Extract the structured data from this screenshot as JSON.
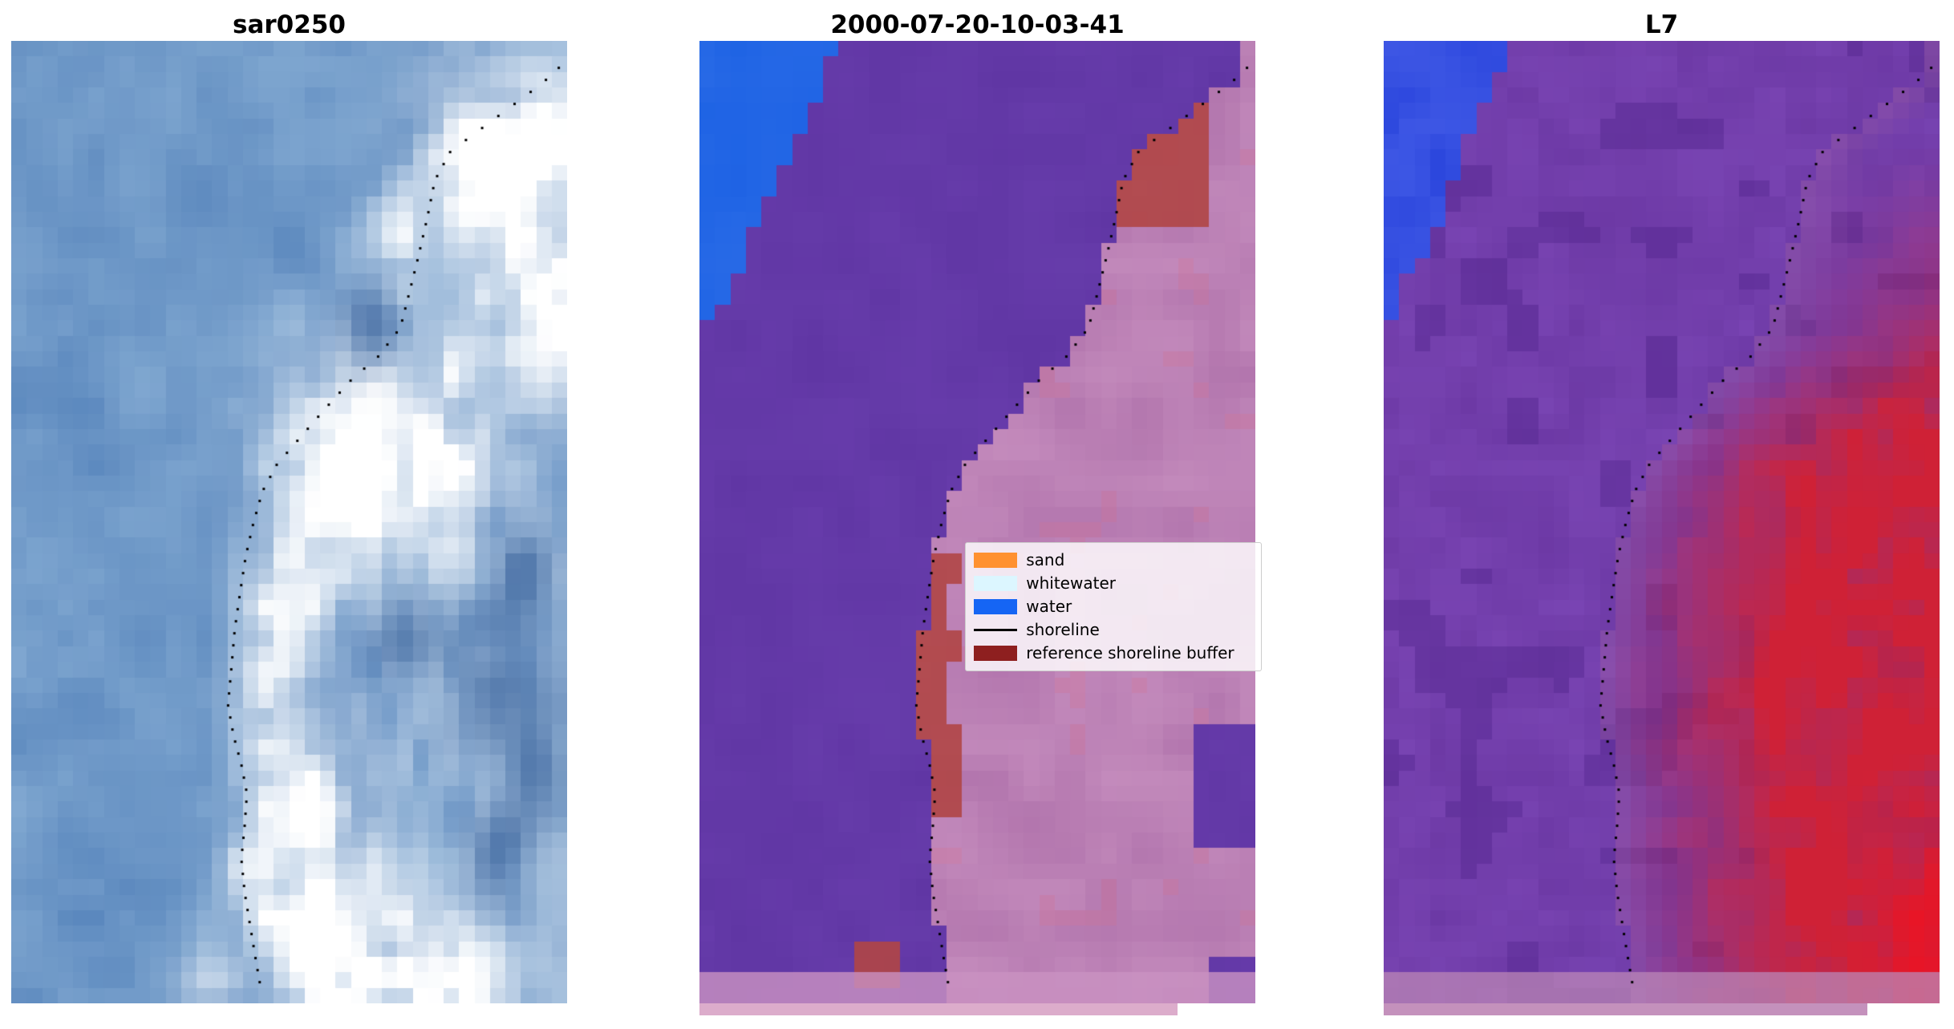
{
  "figure": {
    "background": "#ffffff"
  },
  "panels": [
    {
      "title": "sar0250"
    },
    {
      "title": "2000-07-20-10-03-41"
    },
    {
      "title": "L7"
    }
  ],
  "legend": {
    "items": [
      {
        "label": "sand",
        "swatch": "#ff9130",
        "type": "patch"
      },
      {
        "label": "whitewater",
        "swatch": "#dcf6ff",
        "type": "patch"
      },
      {
        "label": "water",
        "swatch": "#1565f4",
        "type": "patch"
      },
      {
        "label": "shoreline",
        "swatch": "#000000",
        "type": "line"
      },
      {
        "label": "reference shoreline buffer",
        "swatch": "#8e1f1f",
        "type": "patch"
      }
    ]
  },
  "colors": {
    "sar_sea": "#5a87bd",
    "sar_sea_light": "#8fb4d8",
    "sar_dark": "#3c649c",
    "cls_water": "#1d62e4",
    "cls_water2": "#2f6fe8",
    "cls_purple": "#6036a4",
    "cls_purple2": "#6c41b0",
    "cls_pink": "#ad6fa9",
    "cls_pink_light": "#c78fbf",
    "cls_buffer": "#b04545",
    "cls_band": "#ca92c2",
    "cls_bottom": "#dcaccb",
    "l7_blue": "#2b46dd",
    "l7_blue2": "#4b63ea",
    "l7_purple": "#67349f",
    "l7_purple2": "#7c47b6",
    "l7_purple_dark": "#53268e",
    "l7_pink": "#a868a8",
    "l7_red": "#cf2136",
    "l7_red_bright": "#f21020",
    "l7_band": "#bb86b6",
    "l7_bottom": "#c491bc",
    "shoreline_dot": "#000000"
  },
  "chart_data": {
    "type": "heatmap",
    "panels": [
      "sar0250",
      "2000-07-20-10-03-41",
      "L7"
    ],
    "legend_entries": [
      "sand",
      "whitewater",
      "water",
      "shoreline",
      "reference shoreline buffer"
    ],
    "grid": false,
    "axes_visible": false,
    "shoreline": [
      [
        0.985,
        0.03
      ],
      [
        0.93,
        0.055
      ],
      [
        0.86,
        0.085
      ],
      [
        0.79,
        0.115
      ],
      [
        0.762,
        0.145
      ],
      [
        0.748,
        0.185
      ],
      [
        0.732,
        0.225
      ],
      [
        0.716,
        0.262
      ],
      [
        0.7,
        0.298
      ],
      [
        0.66,
        0.328
      ],
      [
        0.612,
        0.352
      ],
      [
        0.565,
        0.382
      ],
      [
        0.52,
        0.412
      ],
      [
        0.478,
        0.44
      ],
      [
        0.452,
        0.468
      ],
      [
        0.436,
        0.5
      ],
      [
        0.422,
        0.535
      ],
      [
        0.412,
        0.572
      ],
      [
        0.402,
        0.612
      ],
      [
        0.396,
        0.652
      ],
      [
        0.39,
        0.69
      ],
      [
        0.4,
        0.722
      ],
      [
        0.414,
        0.752
      ],
      [
        0.424,
        0.782
      ],
      [
        0.42,
        0.815
      ],
      [
        0.414,
        0.85
      ],
      [
        0.42,
        0.885
      ],
      [
        0.43,
        0.92
      ],
      [
        0.44,
        0.955
      ],
      [
        0.45,
        0.988
      ]
    ]
  }
}
